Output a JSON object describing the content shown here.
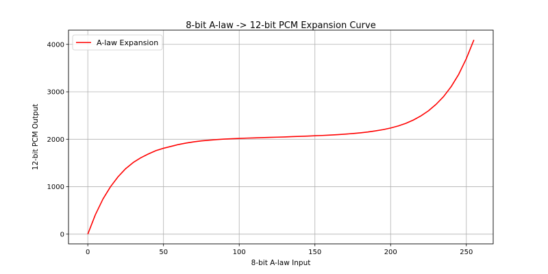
{
  "chart_data": {
    "type": "line",
    "title": "8-bit A-law -> 12-bit PCM Expansion Curve",
    "xlabel": "8-bit A-law Input",
    "ylabel": "12-bit PCM Output",
    "xlim": [
      -12.75,
      267.75
    ],
    "ylim": [
      -204.75,
      4299.75
    ],
    "x_ticks": [
      0,
      50,
      100,
      150,
      200,
      250
    ],
    "y_ticks": [
      0,
      1000,
      2000,
      3000,
      4000
    ],
    "x_tick_labels": [
      "0",
      "50",
      "100",
      "150",
      "200",
      "250"
    ],
    "y_tick_labels": [
      "0",
      "1000",
      "2000",
      "3000",
      "4000"
    ],
    "grid": true,
    "legend_position": "upper left",
    "series": [
      {
        "name": "A-law Expansion",
        "color": "#ff0000",
        "x": [
          0,
          5,
          10,
          15,
          20,
          25,
          30,
          35,
          40,
          45,
          50,
          55,
          60,
          65,
          70,
          75,
          80,
          85,
          90,
          95,
          100,
          105,
          110,
          115,
          120,
          125,
          130,
          135,
          140,
          145,
          150,
          155,
          160,
          165,
          170,
          175,
          180,
          185,
          190,
          195,
          200,
          205,
          210,
          215,
          220,
          225,
          230,
          235,
          240,
          245,
          250,
          255
        ],
        "y": [
          0,
          410,
          740,
          1000,
          1210,
          1380,
          1510,
          1610,
          1690,
          1760,
          1810,
          1850,
          1890,
          1920,
          1945,
          1965,
          1980,
          1993,
          2003,
          2011,
          2018,
          2024,
          2029,
          2034,
          2039,
          2044,
          2049,
          2055,
          2061,
          2067,
          2073,
          2080,
          2088,
          2097,
          2108,
          2120,
          2135,
          2153,
          2176,
          2203,
          2237,
          2280,
          2335,
          2405,
          2492,
          2600,
          2735,
          2900,
          3110,
          3370,
          3700,
          4095
        ]
      }
    ]
  }
}
